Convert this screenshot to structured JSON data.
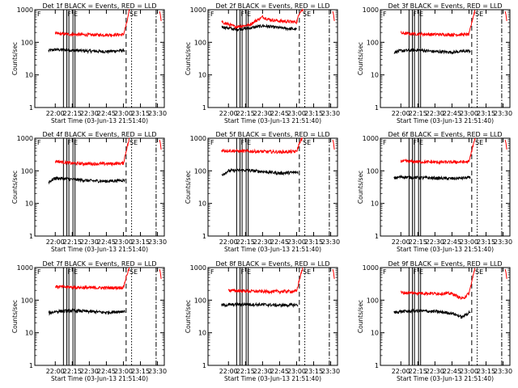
{
  "colors": {
    "events": "#000000",
    "lld": "#ff0000",
    "axes": "#000000",
    "background": "#ffffff"
  },
  "chart_data": [
    {
      "type": "line",
      "title": "Det 1f BLACK = Events, RED = LLD",
      "xlabel": "Start Time (03-Jun-13 21:51:40)",
      "ylabel": "Counts/sec",
      "yscale": "log",
      "ylim": [
        1,
        1000
      ],
      "xticks": [
        "22:00",
        "22:15",
        "22:30",
        "22:45",
        "23:00",
        "23:15",
        "23:30"
      ],
      "yticks": [
        "1",
        "10",
        "100",
        "1000"
      ],
      "annotations": [
        "F",
        "F",
        "E",
        "SE"
      ],
      "series": [
        {
          "values": [
            [
              21.9,
              55
            ],
            [
              22.0,
              60
            ],
            [
              22.25,
              57
            ],
            [
              22.5,
              54
            ],
            [
              22.75,
              52
            ],
            [
              23.02,
              57
            ]
          ]
        },
        {
          "values": [
            [
              22.0,
              185
            ],
            [
              22.25,
              175
            ],
            [
              22.5,
              170
            ],
            [
              22.75,
              170
            ],
            [
              23.0,
              172
            ],
            [
              23.05,
              400
            ],
            [
              23.09,
              1000
            ]
          ]
        }
      ]
    },
    {
      "type": "line",
      "title": "Det 2f BLACK = Events, RED = LLD",
      "xlabel": "Start Time (03-Jun-13 21:51:40)",
      "ylabel": "Counts/sec",
      "yscale": "log",
      "ylim": [
        1,
        1000
      ],
      "xticks": [
        "22:00",
        "22:15",
        "22:30",
        "22:45",
        "23:00",
        "23:15",
        "23:30"
      ],
      "yticks": [
        "1",
        "10",
        "100",
        "1000"
      ],
      "annotations": [
        "F",
        "F",
        "E",
        "SE"
      ],
      "series": [
        {
          "values": [
            [
              21.9,
              300
            ],
            [
              22.1,
              250
            ],
            [
              22.3,
              270
            ],
            [
              22.5,
              320
            ],
            [
              22.75,
              280
            ],
            [
              23.0,
              250
            ]
          ]
        },
        {
          "values": [
            [
              21.9,
              420
            ],
            [
              22.1,
              300
            ],
            [
              22.3,
              340
            ],
            [
              22.5,
              600
            ],
            [
              22.6,
              500
            ],
            [
              22.75,
              450
            ],
            [
              23.0,
              420
            ],
            [
              23.05,
              900
            ],
            [
              23.1,
              1000
            ]
          ]
        }
      ]
    },
    {
      "type": "line",
      "title": "Det 3f BLACK = Events, RED = LLD",
      "xlabel": "Start Time (03-Jun-13 21:51:40)",
      "ylabel": "Counts/sec",
      "yscale": "log",
      "ylim": [
        1,
        1000
      ],
      "xticks": [
        "22:00",
        "22:15",
        "22:30",
        "22:45",
        "23:00",
        "23:15",
        "23:30"
      ],
      "yticks": [
        "1",
        "10",
        "100",
        "1000"
      ],
      "annotations": [
        "F",
        "F",
        "E",
        "SE"
      ],
      "series": [
        {
          "values": [
            [
              21.9,
              50
            ],
            [
              22.0,
              55
            ],
            [
              22.25,
              58
            ],
            [
              22.5,
              52
            ],
            [
              22.75,
              50
            ],
            [
              23.02,
              55
            ]
          ]
        },
        {
          "values": [
            [
              22.0,
              190
            ],
            [
              22.25,
              180
            ],
            [
              22.5,
              175
            ],
            [
              22.75,
              172
            ],
            [
              23.0,
              175
            ],
            [
              23.05,
              500
            ],
            [
              23.09,
              1000
            ]
          ]
        }
      ]
    },
    {
      "type": "line",
      "title": "Det 4f BLACK = Events, RED = LLD",
      "xlabel": "Start Time (03-Jun-13 21:51:40)",
      "ylabel": "Counts/sec",
      "yscale": "log",
      "ylim": [
        1,
        1000
      ],
      "xticks": [
        "22:00",
        "22:15",
        "22:30",
        "22:45",
        "23:00",
        "23:15",
        "23:30"
      ],
      "yticks": [
        "1",
        "10",
        "100",
        "1000"
      ],
      "annotations": [
        "F",
        "F",
        "E",
        "SE"
      ],
      "series": [
        {
          "values": [
            [
              21.9,
              45
            ],
            [
              22.0,
              60
            ],
            [
              22.25,
              55
            ],
            [
              22.5,
              50
            ],
            [
              22.75,
              48
            ],
            [
              23.02,
              52
            ]
          ]
        },
        {
          "values": [
            [
              22.0,
              200
            ],
            [
              22.25,
              170
            ],
            [
              22.5,
              165
            ],
            [
              22.75,
              165
            ],
            [
              23.0,
              170
            ],
            [
              23.05,
              500
            ],
            [
              23.09,
              1000
            ]
          ]
        }
      ]
    },
    {
      "type": "line",
      "title": "Det 5f BLACK = Events, RED = LLD",
      "xlabel": "Start Time (03-Jun-13 21:51:40)",
      "ylabel": "Counts/sec",
      "yscale": "log",
      "ylim": [
        1,
        1000
      ],
      "xticks": [
        "22:00",
        "22:15",
        "22:30",
        "22:45",
        "23:00",
        "23:15",
        "23:30"
      ],
      "yticks": [
        "1",
        "10",
        "100",
        "1000"
      ],
      "annotations": [
        "F",
        "F",
        "E",
        "SE"
      ],
      "series": [
        {
          "values": [
            [
              21.9,
              75
            ],
            [
              22.0,
              100
            ],
            [
              22.25,
              105
            ],
            [
              22.5,
              95
            ],
            [
              22.75,
              85
            ],
            [
              23.02,
              90
            ]
          ]
        },
        {
          "values": [
            [
              21.9,
              420
            ],
            [
              22.25,
              400
            ],
            [
              22.5,
              390
            ],
            [
              22.75,
              380
            ],
            [
              23.0,
              390
            ],
            [
              23.05,
              800
            ],
            [
              23.09,
              1000
            ]
          ]
        }
      ]
    },
    {
      "type": "line",
      "title": "Det 6f BLACK = Events, RED = LLD",
      "xlabel": "Start Time (03-Jun-13 21:51:40)",
      "ylabel": "Counts/sec",
      "yscale": "log",
      "ylim": [
        1,
        1000
      ],
      "xticks": [
        "22:00",
        "22:15",
        "22:30",
        "22:45",
        "23:00",
        "23:15",
        "23:30"
      ],
      "yticks": [
        "1",
        "10",
        "100",
        "1000"
      ],
      "annotations": [
        "F",
        "F",
        "E",
        "SE"
      ],
      "series": [
        {
          "values": [
            [
              21.9,
              60
            ],
            [
              22.0,
              65
            ],
            [
              22.25,
              62
            ],
            [
              22.5,
              60
            ],
            [
              22.75,
              58
            ],
            [
              23.02,
              62
            ]
          ]
        },
        {
          "values": [
            [
              22.0,
              200
            ],
            [
              22.25,
              190
            ],
            [
              22.5,
              185
            ],
            [
              22.75,
              185
            ],
            [
              23.0,
              188
            ],
            [
              23.05,
              500
            ],
            [
              23.09,
              1000
            ]
          ]
        }
      ]
    },
    {
      "type": "line",
      "title": "Det 7f BLACK = Events, RED = LLD",
      "xlabel": "Start Time (03-Jun-13 21:51:40)",
      "ylabel": "Counts/sec",
      "yscale": "log",
      "ylim": [
        1,
        1000
      ],
      "xticks": [
        "22:00",
        "22:15",
        "22:30",
        "22:45",
        "23:00",
        "23:15",
        "23:30"
      ],
      "yticks": [
        "1",
        "10",
        "100",
        "1000"
      ],
      "annotations": [
        "F",
        "F",
        "E",
        "SE"
      ],
      "series": [
        {
          "values": [
            [
              21.9,
              40
            ],
            [
              22.0,
              45
            ],
            [
              22.25,
              48
            ],
            [
              22.5,
              45
            ],
            [
              22.75,
              42
            ],
            [
              23.02,
              46
            ]
          ]
        },
        {
          "values": [
            [
              22.0,
              260
            ],
            [
              22.25,
              250
            ],
            [
              22.5,
              240
            ],
            [
              22.75,
              240
            ],
            [
              23.0,
              245
            ],
            [
              23.05,
              600
            ],
            [
              23.09,
              1000
            ]
          ]
        }
      ]
    },
    {
      "type": "line",
      "title": "Det 8f BLACK = Events, RED = LLD",
      "xlabel": "Start Time (03-Jun-13 21:51:40)",
      "ylabel": "Counts/sec",
      "yscale": "log",
      "ylim": [
        1,
        1000
      ],
      "xticks": [
        "22:00",
        "22:15",
        "22:30",
        "22:45",
        "23:00",
        "23:15",
        "23:30"
      ],
      "yticks": [
        "1",
        "10",
        "100",
        "1000"
      ],
      "annotations": [
        "F",
        "F",
        "E",
        "SE"
      ],
      "series": [
        {
          "values": [
            [
              21.9,
              70
            ],
            [
              22.0,
              72
            ],
            [
              22.25,
              75
            ],
            [
              22.5,
              73
            ],
            [
              22.75,
              70
            ],
            [
              23.02,
              72
            ]
          ]
        },
        {
          "values": [
            [
              22.0,
              200
            ],
            [
              22.25,
              190
            ],
            [
              22.5,
              185
            ],
            [
              22.75,
              185
            ],
            [
              23.0,
              188
            ],
            [
              23.05,
              500
            ],
            [
              23.09,
              1000
            ]
          ]
        }
      ]
    },
    {
      "type": "line",
      "title": "Det 9f BLACK = Events, RED = LLD",
      "xlabel": "Start Time (03-Jun-13 21:51:40)",
      "ylabel": "Counts/sec",
      "yscale": "log",
      "ylim": [
        1,
        1000
      ],
      "xticks": [
        "22:00",
        "22:15",
        "22:30",
        "22:45",
        "23:00",
        "23:15",
        "23:30"
      ],
      "yticks": [
        "1",
        "10",
        "100",
        "1000"
      ],
      "annotations": [
        "F",
        "F",
        "E",
        "SE"
      ],
      "series": [
        {
          "values": [
            [
              21.9,
              42
            ],
            [
              22.0,
              45
            ],
            [
              22.25,
              47
            ],
            [
              22.5,
              45
            ],
            [
              22.75,
              40
            ],
            [
              22.9,
              30
            ],
            [
              23.02,
              45
            ]
          ]
        },
        {
          "values": [
            [
              22.0,
              170
            ],
            [
              22.25,
              165
            ],
            [
              22.5,
              160
            ],
            [
              22.75,
              160
            ],
            [
              22.9,
              110
            ],
            [
              23.0,
              160
            ],
            [
              23.05,
              450
            ],
            [
              23.09,
              1000
            ]
          ]
        }
      ]
    }
  ]
}
